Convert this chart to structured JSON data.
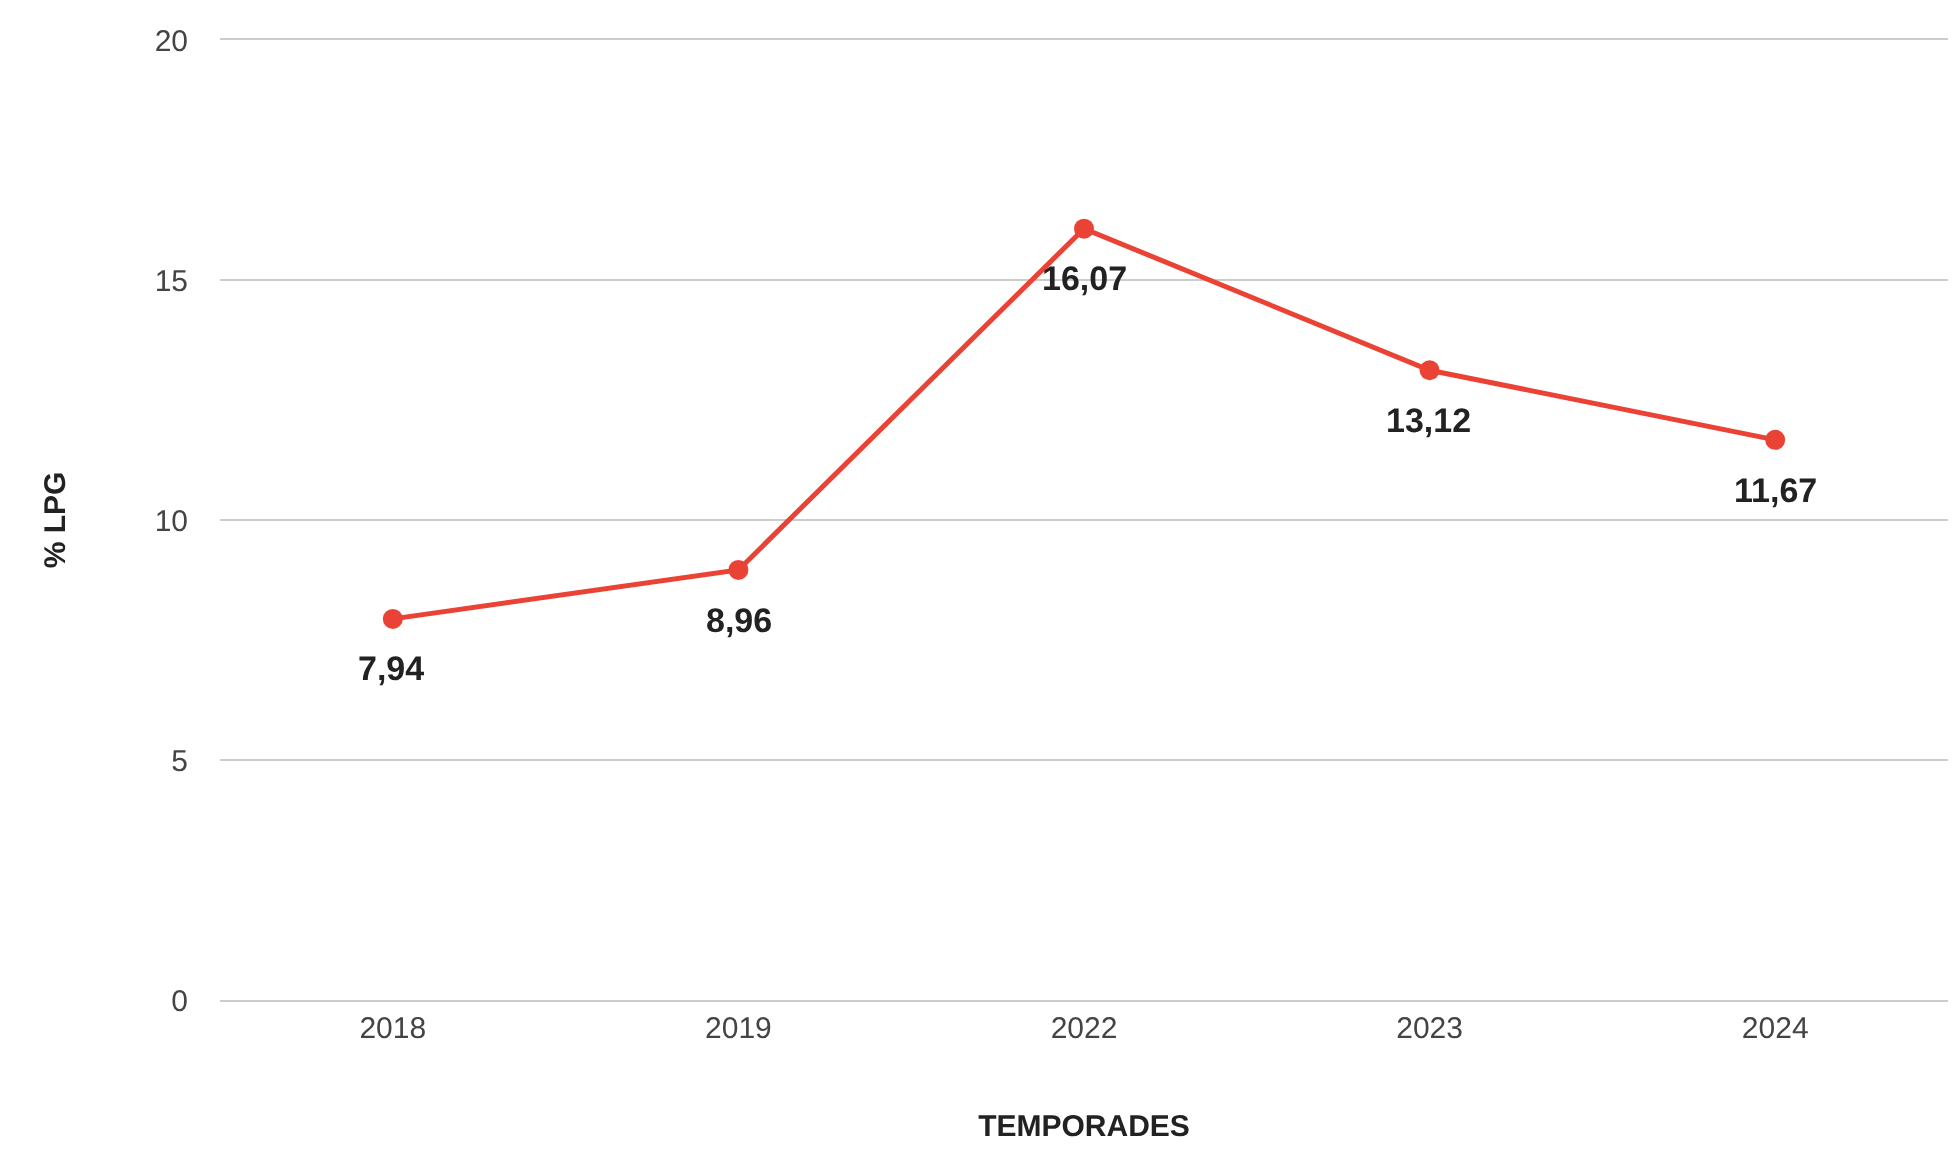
{
  "chart_data": {
    "type": "line",
    "xlabel": "TEMPORADES",
    "ylabel": "% LPG",
    "categories": [
      "2018",
      "2019",
      "2022",
      "2023",
      "2024"
    ],
    "series": [
      {
        "color": "#ea4335",
        "values": [
          7.94,
          8.96,
          16.07,
          13.12,
          11.67
        ],
        "value_labels": [
          "7,94",
          "8,96",
          "16,07",
          "13,12",
          "11,67"
        ]
      }
    ],
    "ylim": [
      0,
      20
    ],
    "yticks": [
      0,
      5,
      10,
      15,
      20
    ],
    "grid": "y",
    "marker": "circle",
    "line_style": "solid"
  }
}
